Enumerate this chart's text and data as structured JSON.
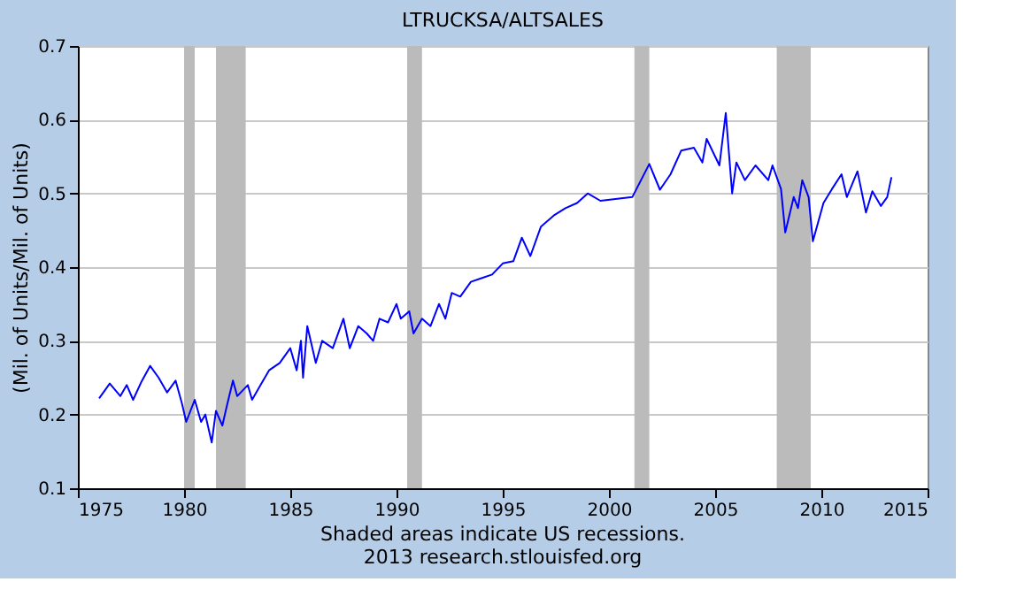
{
  "chart_data": {
    "type": "line",
    "title": "LTRUCKSA/ALTSALES",
    "ylabel": "(Mil. of Units/Mil. of Units)",
    "annotations": [
      "Shaded areas indicate US recessions.",
      "2013 research.stlouisfed.org"
    ],
    "x": [
      1976.0,
      1976.5,
      1977.0,
      1977.3,
      1977.6,
      1978.0,
      1978.4,
      1978.8,
      1979.2,
      1979.6,
      1979.9,
      1980.1,
      1980.5,
      1980.8,
      1981.0,
      1981.3,
      1981.5,
      1981.8,
      1982.0,
      1982.3,
      1982.5,
      1983.0,
      1983.2,
      1983.6,
      1984.0,
      1984.5,
      1985.0,
      1985.3,
      1985.5,
      1985.6,
      1985.8,
      1986.2,
      1986.5,
      1987.0,
      1987.5,
      1987.8,
      1988.2,
      1988.6,
      1988.9,
      1989.2,
      1989.6,
      1990.0,
      1990.2,
      1990.6,
      1990.8,
      1991.2,
      1991.6,
      1992.0,
      1992.3,
      1992.6,
      1993.0,
      1993.5,
      1994.0,
      1994.5,
      1995.0,
      1995.5,
      1995.9,
      1996.3,
      1996.8,
      1997.4,
      1997.95,
      1998.5,
      1999.0,
      1999.6,
      2001.1,
      2001.9,
      2002.4,
      2002.9,
      2003.4,
      2004.0,
      2004.4,
      2004.6,
      2005.2,
      2005.5,
      2005.8,
      2006.0,
      2006.4,
      2006.9,
      2007.5,
      2007.7,
      2008.1,
      2008.3,
      2008.7,
      2008.9,
      2009.1,
      2009.4,
      2009.6,
      2010.1,
      2010.5,
      2010.95,
      2011.2,
      2011.7,
      2012.1,
      2012.4,
      2012.8,
      2013.1,
      2013.3
    ],
    "series": [
      {
        "color": "#0000ff",
        "values": [
          0.222,
          0.242,
          0.225,
          0.24,
          0.22,
          0.245,
          0.266,
          0.25,
          0.23,
          0.246,
          0.215,
          0.19,
          0.22,
          0.19,
          0.2,
          0.162,
          0.205,
          0.185,
          0.21,
          0.246,
          0.225,
          0.24,
          0.22,
          0.24,
          0.26,
          0.27,
          0.29,
          0.26,
          0.3,
          0.25,
          0.32,
          0.27,
          0.3,
          0.29,
          0.33,
          0.29,
          0.32,
          0.31,
          0.3,
          0.33,
          0.325,
          0.35,
          0.33,
          0.34,
          0.31,
          0.33,
          0.32,
          0.35,
          0.33,
          0.365,
          0.36,
          0.38,
          0.385,
          0.39,
          0.405,
          0.408,
          0.44,
          0.415,
          0.455,
          0.47,
          0.48,
          0.487,
          0.5,
          0.49,
          0.495,
          0.54,
          0.505,
          0.526,
          0.558,
          0.562,
          0.542,
          0.574,
          0.538,
          0.609,
          0.5,
          0.542,
          0.518,
          0.538,
          0.518,
          0.538,
          0.506,
          0.447,
          0.495,
          0.48,
          0.518,
          0.495,
          0.435,
          0.487,
          0.506,
          0.526,
          0.495,
          0.53,
          0.474,
          0.503,
          0.483,
          0.495,
          0.522
        ]
      }
    ],
    "xlim": [
      1975,
      2015
    ],
    "xticks": [
      1975,
      1980,
      1985,
      1990,
      1995,
      2000,
      2005,
      2010,
      2015
    ],
    "ylim": [
      0.1,
      0.7
    ],
    "yticks": [
      0.1,
      0.2,
      0.3,
      0.4,
      0.5,
      0.6,
      0.7
    ],
    "bands": [
      {
        "axis": "x",
        "from": 1980.0,
        "to": 1980.5,
        "color": "#bbbbbb"
      },
      {
        "axis": "x",
        "from": 1981.5,
        "to": 1982.9,
        "color": "#bbbbbb"
      },
      {
        "axis": "x",
        "from": 1990.5,
        "to": 1991.2,
        "color": "#bbbbbb"
      },
      {
        "axis": "x",
        "from": 2001.2,
        "to": 2001.9,
        "color": "#bbbbbb"
      },
      {
        "axis": "x",
        "from": 2007.9,
        "to": 2009.5,
        "color": "#bbbbbb"
      }
    ],
    "grid": "y",
    "line_style": "solid",
    "marker": "none"
  }
}
